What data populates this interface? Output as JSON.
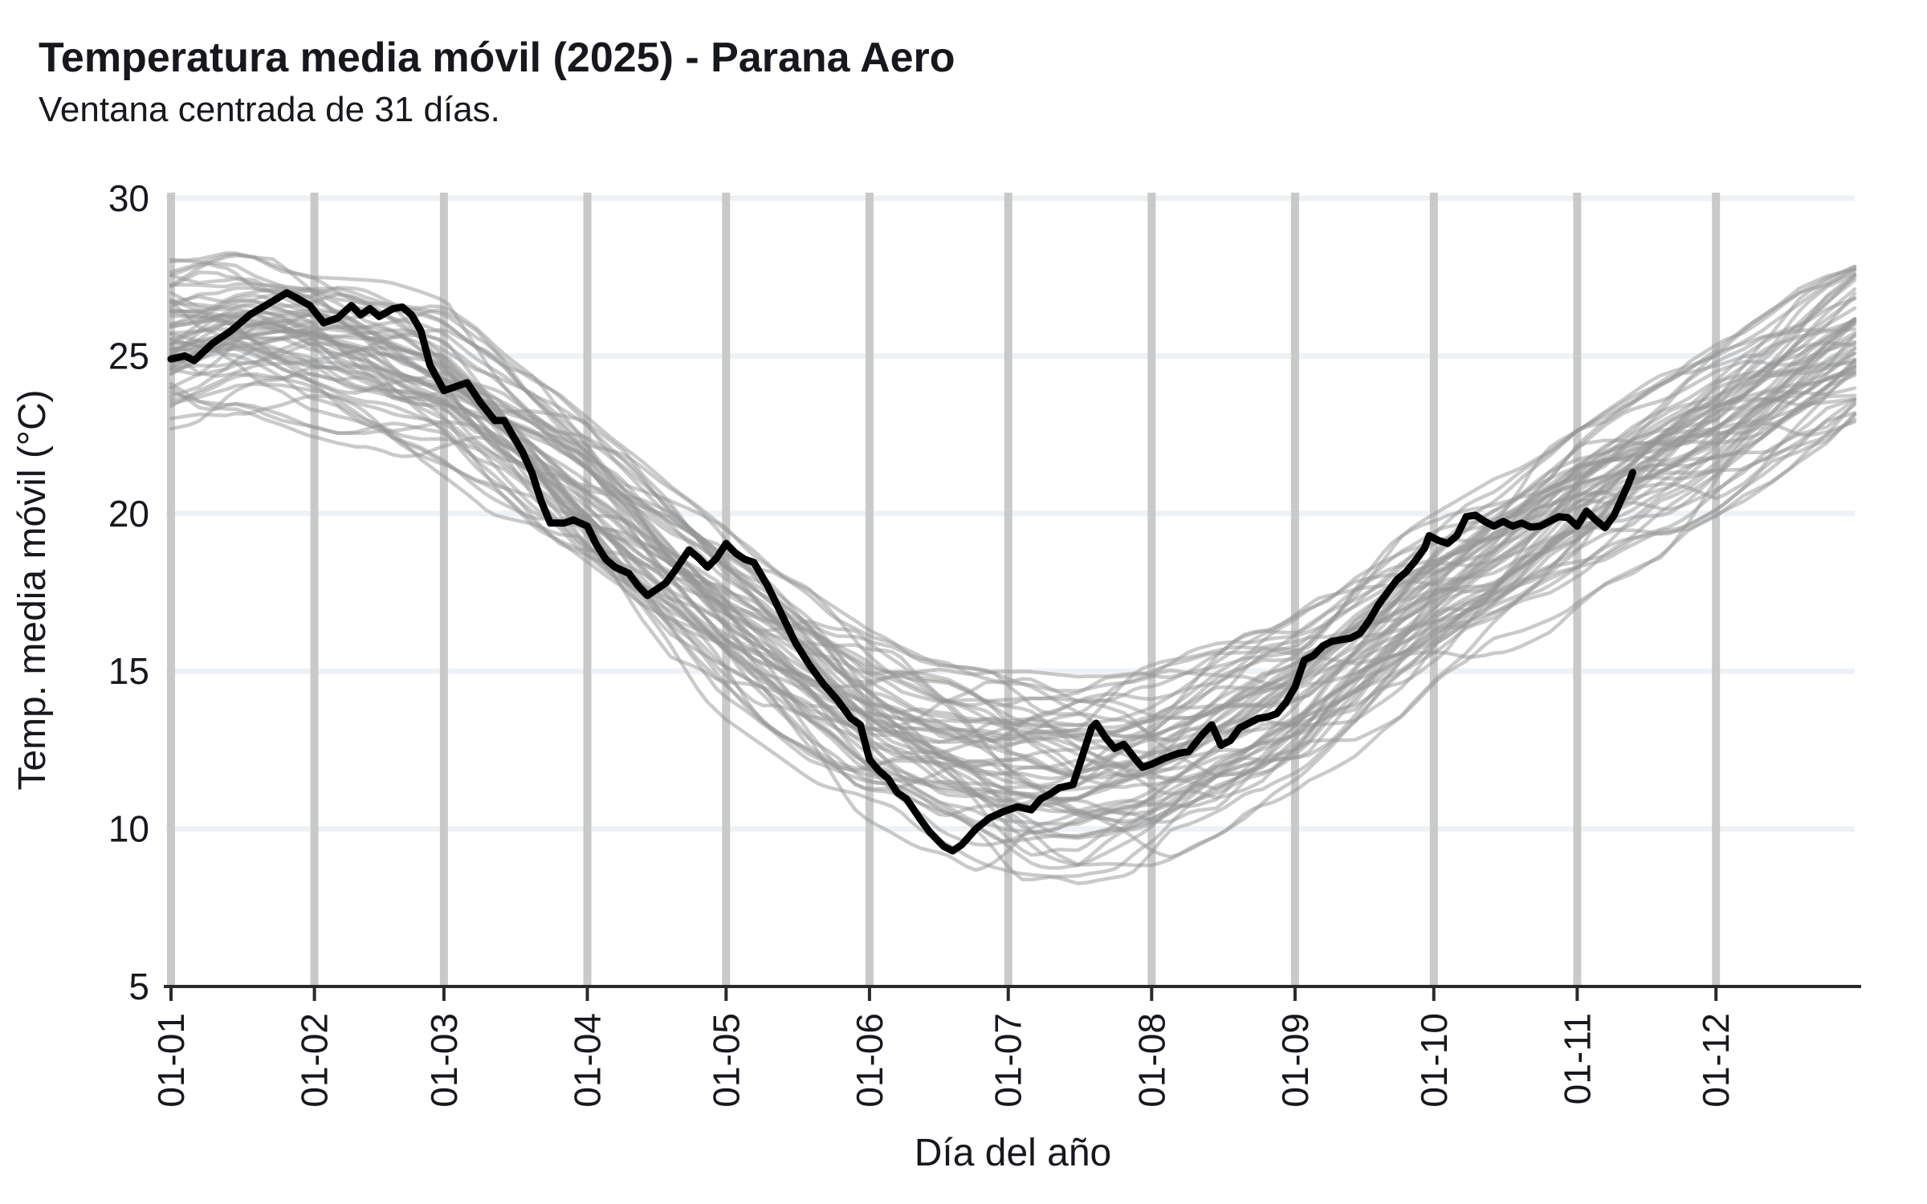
{
  "header": {
    "title": "Temperatura media móvil (2025) - Parana Aero",
    "subtitle": "Ventana centrada de 31 días."
  },
  "chart_data": {
    "type": "line",
    "title": "Temperatura media móvil (2025) - Parana Aero",
    "subtitle": "Ventana centrada de 31 días.",
    "xlabel": "Día del año",
    "ylabel": "Temp. media móvil (°C)",
    "x_tick_labels": [
      "01-01",
      "01-02",
      "01-03",
      "01-04",
      "01-05",
      "01-06",
      "01-07",
      "01-08",
      "01-09",
      "01-10",
      "01-11",
      "01-12"
    ],
    "x_tick_days": [
      1,
      32,
      60,
      91,
      121,
      152,
      182,
      213,
      244,
      274,
      305,
      335
    ],
    "x_range_days": [
      1,
      365
    ],
    "yticks": [
      5,
      10,
      15,
      20,
      25,
      30
    ],
    "ylim": [
      5,
      30
    ],
    "grid": {
      "vertical_month_bars": true,
      "horizontal_lines_at": [
        10,
        15,
        20,
        25,
        30
      ]
    },
    "legend": "none",
    "highlight_series": {
      "name": "2025",
      "color": "#000000",
      "stroke_width": 9,
      "days": [
        1,
        4,
        6,
        10,
        14,
        18,
        22,
        26,
        28,
        31,
        34,
        37,
        40,
        42,
        44,
        46,
        49,
        51,
        53,
        55,
        57,
        60,
        62,
        65,
        68,
        71,
        73,
        75,
        77,
        79,
        81,
        83,
        86,
        88,
        91,
        93,
        95,
        97,
        100,
        102,
        104,
        106,
        108,
        110,
        113,
        115,
        117,
        119,
        121,
        123,
        125,
        127,
        130,
        133,
        136,
        139,
        142,
        145,
        148,
        150,
        152,
        154,
        156,
        158,
        160,
        163,
        165,
        168,
        170,
        172,
        175,
        178,
        181,
        184,
        187,
        189,
        191,
        193,
        196,
        198,
        200,
        201,
        203,
        205,
        207,
        209,
        211,
        213,
        216,
        219,
        221,
        224,
        226,
        228,
        230,
        232,
        234,
        236,
        238,
        240,
        242,
        244,
        246,
        248,
        250,
        252,
        254,
        256,
        258,
        260,
        262,
        264,
        266,
        268,
        270,
        272,
        273,
        275,
        277,
        279,
        281,
        283,
        285,
        287,
        289,
        291,
        293,
        295,
        297,
        299,
        301,
        303,
        305,
        307,
        309,
        311,
        313,
        314,
        315,
        316,
        317
      ],
      "values": [
        24.9,
        25.0,
        24.85,
        25.4,
        25.8,
        26.3,
        26.65,
        27.0,
        26.85,
        26.6,
        26.05,
        26.2,
        26.6,
        26.3,
        26.5,
        26.25,
        26.5,
        26.55,
        26.3,
        25.8,
        24.7,
        23.9,
        24.0,
        24.15,
        23.5,
        22.95,
        22.95,
        22.45,
        21.95,
        21.3,
        20.4,
        19.7,
        19.7,
        19.8,
        19.6,
        19.0,
        18.55,
        18.3,
        18.1,
        17.7,
        17.4,
        17.6,
        17.8,
        18.2,
        18.85,
        18.6,
        18.3,
        18.6,
        19.05,
        18.75,
        18.55,
        18.45,
        17.7,
        16.8,
        15.9,
        15.2,
        14.6,
        14.1,
        13.5,
        13.3,
        12.2,
        11.85,
        11.6,
        11.15,
        10.95,
        10.3,
        9.9,
        9.45,
        9.3,
        9.5,
        10.0,
        10.35,
        10.55,
        10.7,
        10.6,
        10.95,
        11.1,
        11.3,
        11.4,
        12.3,
        13.2,
        13.35,
        12.9,
        12.55,
        12.68,
        12.3,
        11.95,
        12.05,
        12.25,
        12.4,
        12.45,
        13.0,
        13.3,
        12.65,
        12.8,
        13.2,
        13.35,
        13.5,
        13.55,
        13.65,
        14.0,
        14.5,
        15.35,
        15.5,
        15.8,
        15.95,
        16.0,
        16.05,
        16.2,
        16.6,
        17.1,
        17.5,
        17.9,
        18.15,
        18.5,
        18.9,
        19.3,
        19.15,
        19.05,
        19.3,
        19.9,
        19.95,
        19.75,
        19.6,
        19.75,
        19.6,
        19.7,
        19.57,
        19.6,
        19.75,
        19.9,
        19.87,
        19.6,
        20.08,
        19.8,
        19.55,
        19.95,
        20.28,
        20.6,
        20.92,
        21.3
      ]
    },
    "background_series": {
      "description": "historical years, one gray line per year",
      "color": "#969696",
      "opacity": 0.5,
      "stroke_width": 4.5,
      "count": 58,
      "render_seed": 11,
      "envelope": {
        "days": [
          1,
          15,
          32,
          46,
          60,
          75,
          91,
          106,
          121,
          136,
          152,
          167,
          182,
          197,
          213,
          228,
          244,
          259,
          274,
          290,
          305,
          320,
          335,
          350,
          365
        ],
        "center": [
          25.4,
          25.6,
          25.2,
          24.6,
          23.7,
          22.0,
          20.2,
          18.4,
          16.6,
          14.9,
          13.2,
          12.2,
          11.6,
          11.5,
          11.9,
          12.8,
          13.9,
          15.4,
          16.9,
          18.4,
          19.9,
          21.3,
          22.6,
          24.0,
          25.4
        ],
        "halfwidth": [
          2.2,
          2.2,
          2.3,
          2.4,
          2.6,
          2.6,
          2.7,
          2.6,
          2.6,
          2.6,
          2.7,
          2.8,
          2.9,
          2.9,
          2.8,
          2.7,
          2.6,
          2.6,
          2.6,
          2.6,
          2.7,
          2.6,
          2.5,
          2.4,
          2.3
        ]
      }
    },
    "style": {
      "text_color": "#16181d",
      "axis_color": "#2a2a2a",
      "month_bar_color": "#c9c9c9",
      "h_grid_color": "#eef2f7",
      "background": "#ffffff"
    }
  }
}
